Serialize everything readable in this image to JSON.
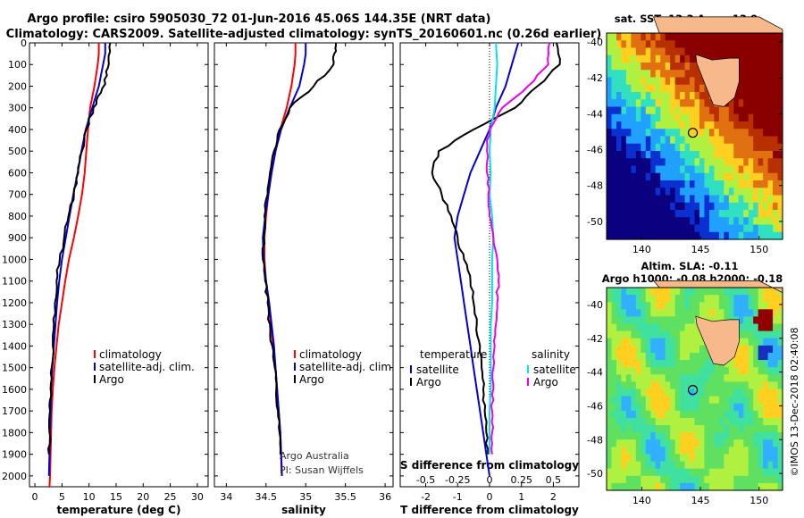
{
  "title_line1": "Argo profile: csiro 5905030_72 01-Jun-2016 45.06S 144.35E (NRT data)",
  "title_line2": "Climatology: CARS2009. Satellite-adjusted climatology: synTS_20160601.nc (0.26d earlier)",
  "depth_ticks": [
    "0",
    "100",
    "200",
    "300",
    "400",
    "500",
    "600",
    "700",
    "800",
    "900",
    "1000",
    "1100",
    "1200",
    "1300",
    "1400",
    "1500",
    "1600",
    "1700",
    "1800",
    "1900",
    "2000"
  ],
  "credit_line1": "Argo Australia",
  "credit_line2": "PI: Susan Wijffels",
  "timestamp": "©IMOS 13-Dec-2018 02:40:08",
  "colors": {
    "climatology": "#ff0000",
    "satellite": "#0000dd",
    "argo": "#000000",
    "cyan": "#00e5e5",
    "magenta": "#ee00ee"
  },
  "chart_data": [
    {
      "type": "line",
      "xlabel": "temperature (deg C)",
      "ylabel": "",
      "xlim": [
        -1,
        32
      ],
      "ylim": [
        2050,
        0
      ],
      "xticks": [
        0,
        5,
        10,
        15,
        20,
        25,
        30
      ],
      "xtick_labels": [
        "0",
        "5",
        "10",
        "15",
        "20",
        "25",
        "30"
      ],
      "legend": [
        "climatology",
        "satellite-adj. clim.",
        "Argo"
      ],
      "series": [
        {
          "name": "climatology",
          "color": "#ff0000",
          "x": [
            11.8,
            11.8,
            11.6,
            11.0,
            10.2,
            9.8,
            9.5,
            9.2,
            8.7,
            8.0,
            7.2,
            6.3,
            5.6,
            5.0,
            4.4,
            4.0,
            3.6,
            3.3,
            3.1,
            3.0,
            2.9,
            2.8,
            2.7,
            2.6
          ],
          "y": [
            0,
            50,
            100,
            200,
            300,
            400,
            500,
            600,
            700,
            800,
            900,
            1000,
            1100,
            1200,
            1300,
            1400,
            1500,
            1600,
            1700,
            1800,
            1900,
            2000,
            2050,
            2050
          ]
        },
        {
          "name": "satellite-adj. clim.",
          "color": "#0000dd",
          "x": [
            13.0,
            13.0,
            12.6,
            11.8,
            10.6,
            9.4,
            8.6,
            7.9,
            7.1,
            6.4,
            5.7,
            5.0,
            4.5,
            4.1,
            3.8,
            3.5,
            3.2,
            3.0,
            2.9,
            2.8,
            2.7,
            2.6
          ],
          "y": [
            0,
            50,
            100,
            200,
            300,
            400,
            500,
            600,
            700,
            800,
            900,
            1000,
            1100,
            1200,
            1300,
            1400,
            1500,
            1600,
            1700,
            1800,
            1900,
            2000
          ]
        },
        {
          "name": "Argo",
          "color": "#000000",
          "x": [
            13.9,
            13.6,
            13.3,
            12.2,
            10.8,
            9.5,
            8.7,
            8.0,
            7.2,
            6.2,
            5.4,
            4.6,
            4.0,
            3.7,
            3.5,
            3.3,
            3.1,
            2.9,
            2.8,
            2.7,
            2.6
          ],
          "y": [
            0,
            80,
            150,
            230,
            300,
            400,
            500,
            600,
            700,
            800,
            900,
            1000,
            1100,
            1200,
            1300,
            1400,
            1500,
            1600,
            1700,
            1800,
            1900
          ]
        }
      ]
    },
    {
      "type": "line",
      "xlabel": "salinity",
      "ylabel": "",
      "xlim": [
        33.85,
        36.1
      ],
      "ylim": [
        2050,
        0
      ],
      "xticks": [
        34,
        34.5,
        35,
        35.5,
        36
      ],
      "xtick_labels": [
        "34",
        "34.5",
        "35",
        "35.5",
        "36"
      ],
      "legend": [
        "climatology",
        "satellite-adj. clim.",
        "Argo"
      ],
      "series": [
        {
          "name": "climatology",
          "color": "#ff0000",
          "x": [
            34.87,
            34.87,
            34.86,
            34.82,
            34.76,
            34.68,
            34.62,
            34.57,
            34.53,
            34.5,
            34.48,
            34.48,
            34.5,
            34.53,
            34.56,
            34.59,
            34.62,
            34.64,
            34.66,
            34.68,
            34.69,
            34.7
          ],
          "y": [
            0,
            50,
            100,
            200,
            300,
            400,
            500,
            600,
            700,
            800,
            900,
            1000,
            1100,
            1200,
            1300,
            1400,
            1500,
            1600,
            1700,
            1800,
            1900,
            2000
          ]
        },
        {
          "name": "satellite-adj. clim.",
          "color": "#0000dd",
          "x": [
            35.0,
            35.0,
            34.98,
            34.92,
            34.8,
            34.69,
            34.62,
            34.57,
            34.53,
            34.49,
            34.46,
            34.47,
            34.5,
            34.54,
            34.57,
            34.6,
            34.62,
            34.64,
            34.66,
            34.68,
            34.69,
            34.7
          ],
          "y": [
            0,
            50,
            100,
            200,
            300,
            400,
            500,
            600,
            700,
            800,
            900,
            1000,
            1100,
            1200,
            1300,
            1400,
            1500,
            1600,
            1700,
            1800,
            1900,
            2000
          ]
        },
        {
          "name": "Argo",
          "color": "#000000",
          "x": [
            35.38,
            35.36,
            35.35,
            35.1,
            34.8,
            34.67,
            34.6,
            34.55,
            34.52,
            34.48,
            34.47,
            34.46,
            34.49,
            34.52,
            34.55,
            34.58,
            34.61,
            34.63,
            34.65,
            34.67,
            34.68
          ],
          "y": [
            0,
            50,
            100,
            200,
            300,
            400,
            500,
            600,
            700,
            800,
            900,
            1000,
            1100,
            1200,
            1300,
            1400,
            1500,
            1600,
            1700,
            1800,
            1900
          ]
        }
      ]
    },
    {
      "type": "line",
      "xlabel": "T difference from climatology",
      "ylabel": "",
      "xlim": [
        -2.8,
        2.8
      ],
      "ylim": [
        2050,
        0
      ],
      "xticks": [
        -2,
        -1,
        0,
        1,
        2
      ],
      "xtick_labels": [
        "-2",
        "-1",
        "0",
        "1",
        "2"
      ],
      "secondary_axis_label": "S difference from climatology",
      "secondary_xlim": [
        -0.7,
        0.7
      ],
      "secondary_xticks": [
        -0.5,
        -0.25,
        0,
        0.25,
        0.5
      ],
      "secondary_xtick_labels": [
        "-0.5",
        "-0.25",
        "0",
        "0.25",
        "0.5"
      ],
      "legend_temperature_title": "temperature",
      "legend_salinity_title": "salinity",
      "legend_temperature": [
        "satellite",
        "Argo"
      ],
      "legend_salinity": [
        "satellite",
        "Argo"
      ],
      "series": [
        {
          "name": "temperature satellite",
          "color": "#0000dd",
          "x": [
            0.9,
            0.7,
            0.5,
            0.2,
            0,
            -0.3,
            -0.6,
            -0.8,
            -1.0,
            -1.1,
            -1.0,
            -0.9,
            -0.8,
            -0.7,
            -0.6,
            -0.5,
            -0.4,
            -0.3,
            -0.2,
            -0.1,
            0
          ],
          "y": [
            0,
            100,
            200,
            300,
            400,
            500,
            600,
            700,
            800,
            900,
            1000,
            1100,
            1200,
            1300,
            1400,
            1500,
            1600,
            1700,
            1800,
            1900,
            2000
          ]
        },
        {
          "name": "temperature Argo",
          "color": "#000000",
          "x": [
            2.1,
            2.2,
            1.5,
            0.8,
            -0.5,
            -1.6,
            -1.8,
            -1.5,
            -1.2,
            -1.0,
            -0.8,
            -0.6,
            -0.5,
            -0.4,
            -0.3,
            -0.25,
            -0.2,
            -0.15,
            -0.1,
            -0.05
          ],
          "y": [
            0,
            100,
            200,
            300,
            400,
            500,
            600,
            700,
            800,
            900,
            1000,
            1100,
            1200,
            1300,
            1400,
            1500,
            1600,
            1700,
            1800,
            1900
          ]
        },
        {
          "name": "salinity satellite",
          "color": "#00e5e5",
          "x": [
            0.05,
            0.06,
            0.05,
            0.04,
            0.01,
            0.0,
            0.01,
            0.0,
            0.02,
            0.03,
            0.02,
            0.02,
            0.02,
            0.01,
            0.01,
            0.01,
            0.01,
            0.0,
            0.0,
            0.0
          ],
          "y": [
            0,
            100,
            200,
            300,
            400,
            500,
            600,
            700,
            800,
            900,
            1000,
            1100,
            1200,
            1300,
            1400,
            1500,
            1600,
            1700,
            1800,
            1900
          ]
        },
        {
          "name": "salinity Argo",
          "color": "#ee00ee",
          "x": [
            0.47,
            0.46,
            0.3,
            0.1,
            0.0,
            -0.02,
            -0.02,
            -0.01,
            0.0,
            0.03,
            0.06,
            0.07,
            0.06,
            0.05,
            0.04,
            0.03,
            0.03,
            0.02,
            0.02,
            0.02
          ],
          "y": [
            0,
            100,
            200,
            300,
            400,
            500,
            600,
            700,
            800,
            900,
            1000,
            1100,
            1200,
            1300,
            1400,
            1500,
            1600,
            1700,
            1800,
            1900
          ]
        }
      ]
    },
    {
      "type": "heatmap",
      "title": "sat. SST: 13.3  Argo: 13.9",
      "xlim": [
        137,
        152
      ],
      "ylim": [
        -51,
        -39.5
      ],
      "xticks": [
        140,
        145,
        150
      ],
      "xtick_labels": [
        "140",
        "145",
        "150"
      ],
      "yticks": [
        -40,
        -42,
        -44,
        -46,
        -48,
        -50
      ],
      "ytick_labels": [
        "-40",
        "-42",
        "-44",
        "-46",
        "-48",
        "-50"
      ],
      "marker": {
        "lon": 144.35,
        "lat": -45.06
      },
      "colorscale": [
        "#0a0080",
        "#0a30d0",
        "#20a0ff",
        "#30e0c0",
        "#b0f040",
        "#ffd020",
        "#e07010",
        "#b83000",
        "#8a0000"
      ]
    },
    {
      "type": "heatmap",
      "title_line1": "Altim. SLA: -0.11",
      "title_line2": "Argo h1000: -0.08 h2000: -0.18",
      "xlim": [
        137,
        152
      ],
      "ylim": [
        -51,
        -39
      ],
      "xticks": [
        140,
        145,
        150
      ],
      "xtick_labels": [
        "140",
        "145",
        "150"
      ],
      "yticks": [
        -40,
        -42,
        -44,
        -46,
        -48,
        -50
      ],
      "ytick_labels": [
        "-40",
        "-42",
        "-44",
        "-46",
        "-48",
        "-50"
      ],
      "marker": {
        "lon": 144.35,
        "lat": -45.06
      },
      "colorscale": [
        "#1830c0",
        "#30b0ff",
        "#40e0a0",
        "#60e060",
        "#b0f040",
        "#ffd020",
        "#e04010",
        "#900000"
      ]
    }
  ]
}
